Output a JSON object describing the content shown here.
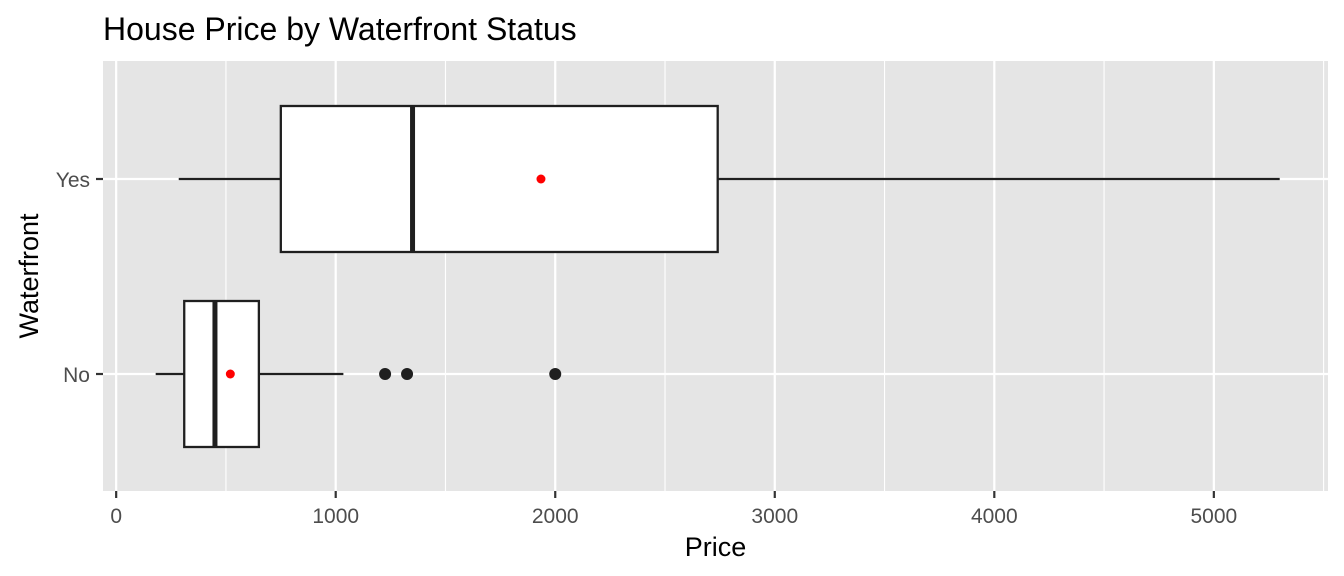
{
  "chart_data": {
    "type": "boxplot",
    "orientation": "horizontal",
    "title": "House Price by Waterfront Status",
    "xlabel": "Price",
    "ylabel": "Waterfront",
    "xlim": [
      -60,
      5520
    ],
    "x_ticks": [
      0,
      1000,
      2000,
      3000,
      4000,
      5000
    ],
    "x_tick_labels": [
      "0",
      "1000",
      "2000",
      "3000",
      "4000",
      "5000"
    ],
    "grid": true,
    "legend": "none",
    "categories": [
      "No",
      "Yes"
    ],
    "boxes": [
      {
        "category": "No",
        "whisker_low": 180,
        "q1": 310,
        "median": 450,
        "q3": 650,
        "whisker_high": 1035,
        "mean": 520,
        "outliers": [
          1225,
          1325,
          2000
        ]
      },
      {
        "category": "Yes",
        "whisker_low": 285,
        "q1": 750,
        "median": 1350,
        "q3": 2740,
        "whisker_high": 5300,
        "mean": 1935,
        "outliers": []
      }
    ],
    "colors": {
      "panel_background": "#e5e5e5",
      "grid": "#ffffff",
      "box_fill": "#ffffff",
      "box_line": "#1f1f1f",
      "mean_point": "#ff0000",
      "outlier_point": "#1f1f1f",
      "tick_text": "#4d4d4d"
    }
  }
}
